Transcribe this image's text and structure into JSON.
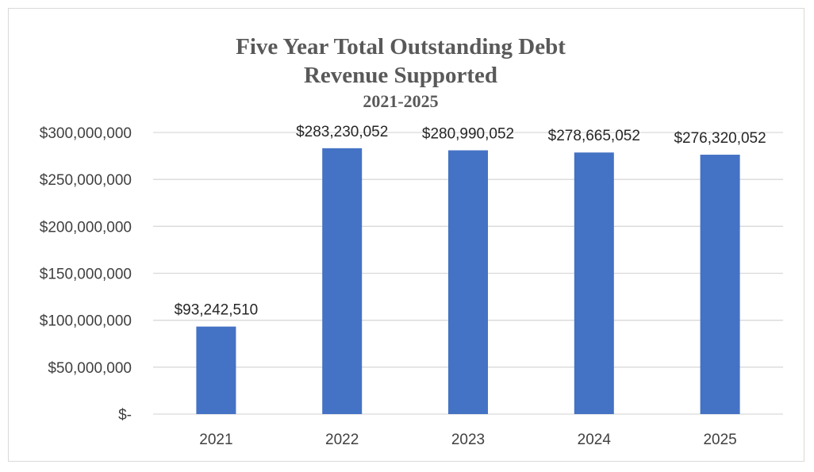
{
  "colors": {
    "bar": "#4472c4",
    "grid": "#d9d9d9",
    "title": "#595959"
  },
  "chart_data": {
    "type": "bar",
    "title": "Five Year Total Outstanding Debt",
    "subtitle": "Revenue Supported",
    "subtitle2": "2021-2025",
    "categories": [
      "2021",
      "2022",
      "2023",
      "2024",
      "2025"
    ],
    "values": [
      93242510,
      283230052,
      280990052,
      278665052,
      276320052
    ],
    "data_labels": [
      "$93,242,510",
      "$283,230,052",
      "$280,990,052",
      "$278,665,052",
      "$276,320,052"
    ],
    "yticks": [
      0,
      50000000,
      100000000,
      150000000,
      200000000,
      250000000,
      300000000
    ],
    "ytick_labels": [
      "$-",
      "$50,000,000",
      "$100,000,000",
      "$150,000,000",
      "$200,000,000",
      "$250,000,000",
      "$300,000,000"
    ],
    "ylim": [
      0,
      300000000
    ],
    "grid": true,
    "legend": "none"
  }
}
